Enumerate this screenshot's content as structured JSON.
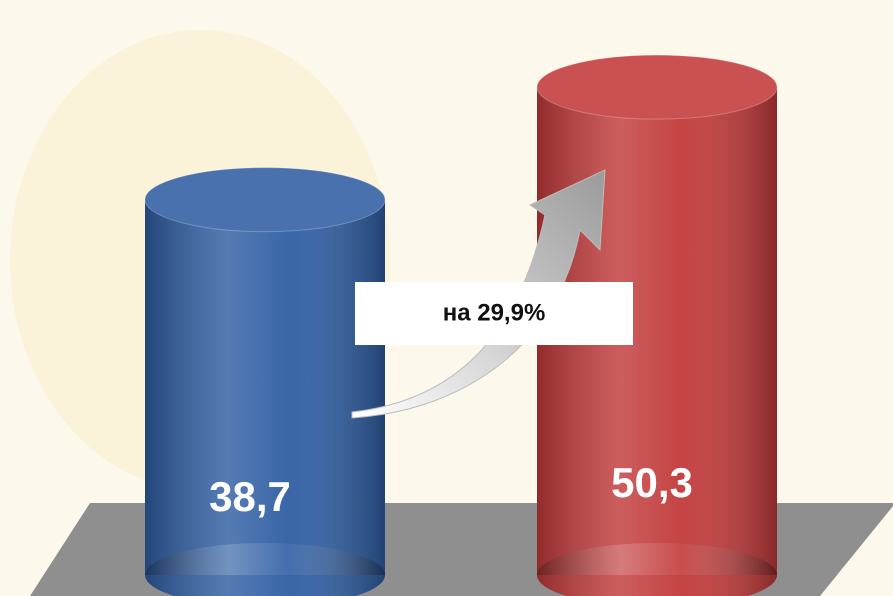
{
  "chart_data": {
    "type": "bar",
    "categories": [
      null,
      null
    ],
    "values": [
      38.7,
      50.3
    ],
    "value_labels": [
      "38,7",
      "50,3"
    ],
    "colors": [
      "#2f5ea3",
      "#c23a3a"
    ],
    "annotation": "на 29,9%"
  }
}
